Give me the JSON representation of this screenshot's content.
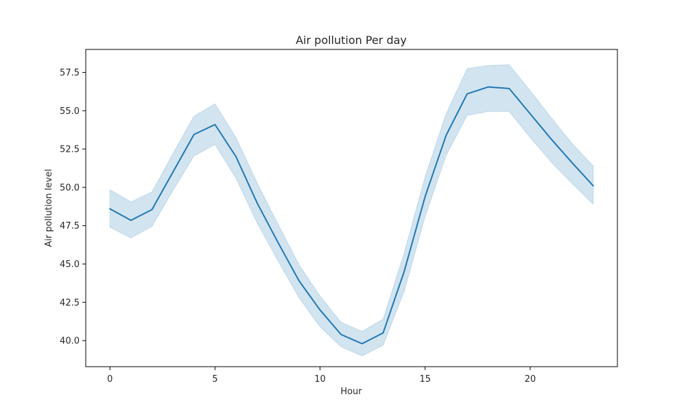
{
  "chart_data": {
    "type": "line",
    "title": "Air pollution Per day",
    "xlabel": "Hour",
    "ylabel": "Air pollution level",
    "xlim": [
      -1.15,
      24.15
    ],
    "ylim": [
      38.3,
      59.0
    ],
    "xticks": [
      0,
      5,
      10,
      15,
      20
    ],
    "yticks": [
      40.0,
      42.5,
      45.0,
      47.5,
      50.0,
      52.5,
      55.0,
      57.5
    ],
    "grid": false,
    "series": [
      {
        "color": "#1f77b4",
        "band_color": "#1f77b4",
        "x": [
          0,
          1,
          2,
          3,
          4,
          5,
          6,
          7,
          8,
          9,
          10,
          11,
          12,
          13,
          14,
          15,
          16,
          17,
          18,
          19,
          20,
          21,
          22,
          23
        ],
        "y": [
          48.6,
          47.85,
          48.55,
          51.0,
          53.45,
          54.1,
          52.0,
          49.0,
          46.4,
          43.9,
          42.0,
          40.4,
          39.8,
          40.5,
          44.5,
          49.4,
          53.4,
          56.1,
          56.55,
          56.45,
          54.8,
          53.15,
          51.6,
          50.1
        ],
        "lower": [
          47.4,
          46.7,
          47.45,
          49.8,
          52.05,
          52.8,
          50.6,
          47.7,
          45.2,
          42.8,
          40.9,
          39.6,
          39.0,
          39.7,
          43.2,
          48.1,
          52.1,
          54.7,
          54.95,
          54.95,
          53.25,
          51.65,
          50.25,
          48.9
        ],
        "upper": [
          49.85,
          49.05,
          49.7,
          52.2,
          54.65,
          55.45,
          53.25,
          50.3,
          47.6,
          44.95,
          42.9,
          41.2,
          40.6,
          41.4,
          45.7,
          50.7,
          54.8,
          57.75,
          57.95,
          58.0,
          56.3,
          54.55,
          52.85,
          51.4
        ]
      }
    ]
  }
}
